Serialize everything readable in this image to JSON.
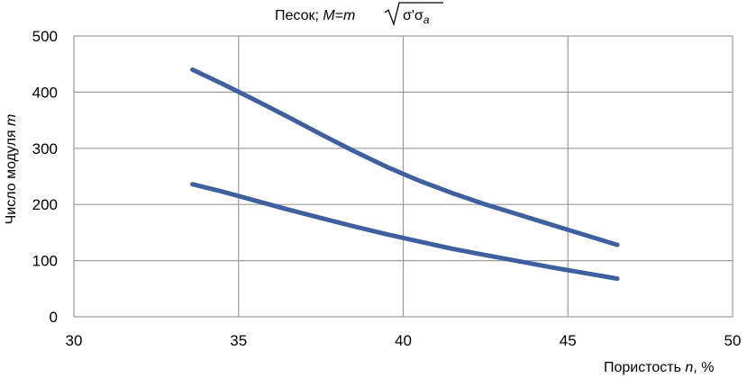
{
  "chart_data": {
    "type": "line",
    "title": {
      "prefix": "Песок; ",
      "M": "M",
      "eq": "=",
      "m": "m",
      "sigma1": "σ'σ",
      "sub": "a"
    },
    "xlabel": {
      "text": "Пористость ",
      "var": "n",
      "unit": ", %"
    },
    "ylabel": {
      "text": "Число модуля ",
      "var": "m"
    },
    "xlim": [
      30,
      50
    ],
    "ylim": [
      0,
      500
    ],
    "xticks": [
      30,
      35,
      40,
      45,
      50
    ],
    "yticks": [
      0,
      100,
      200,
      300,
      400,
      500
    ],
    "grid": true,
    "line_color": "#3e5fa0",
    "series": [
      {
        "x": [
          33.6,
          34.5,
          35.5,
          36.5,
          37.5,
          38.5,
          39.5,
          40.5,
          41.5,
          42.5,
          43.5,
          44.5,
          45.5,
          46.5
        ],
        "y": [
          440,
          415,
          386,
          356,
          325,
          295,
          267,
          242,
          220,
          200,
          182,
          164,
          146,
          128
        ]
      },
      {
        "x": [
          33.6,
          34.5,
          35.5,
          36.5,
          37.5,
          38.5,
          39.5,
          40.5,
          41.5,
          42.5,
          43.5,
          44.5,
          45.5,
          46.5
        ],
        "y": [
          236,
          223,
          207,
          191,
          176,
          161,
          147,
          134,
          121,
          110,
          99,
          88,
          78,
          68
        ]
      }
    ]
  }
}
